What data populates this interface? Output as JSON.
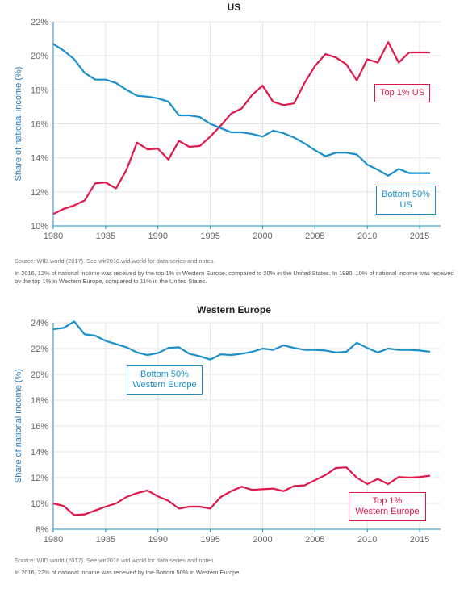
{
  "chart_data": [
    {
      "type": "line",
      "title": "US",
      "ylabel": "Share of national income (%)",
      "xlim": [
        1980,
        2017
      ],
      "ylim": [
        10,
        22
      ],
      "x_ticks": [
        "1980",
        "1985",
        "1990",
        "1995",
        "2000",
        "2005",
        "2010",
        "2015"
      ],
      "y_ticks": [
        "10%",
        "12%",
        "14%",
        "16%",
        "18%",
        "20%",
        "22%"
      ],
      "grid": true,
      "x": [
        1980,
        1981,
        1982,
        1983,
        1984,
        1985,
        1986,
        1987,
        1988,
        1989,
        1990,
        1991,
        1992,
        1993,
        1994,
        1995,
        1996,
        1997,
        1998,
        1999,
        2000,
        2001,
        2002,
        2003,
        2004,
        2005,
        2006,
        2007,
        2008,
        2009,
        2010,
        2011,
        2012,
        2013,
        2014,
        2015,
        2016
      ],
      "series": [
        {
          "name": "Top 1% US",
          "color": "#e0174a",
          "values": [
            10.7,
            11.0,
            11.2,
            11.5,
            12.5,
            12.55,
            12.2,
            13.3,
            14.9,
            14.5,
            14.55,
            13.9,
            15.0,
            14.65,
            14.7,
            15.25,
            15.9,
            16.6,
            16.9,
            17.7,
            18.25,
            17.3,
            17.1,
            17.2,
            18.4,
            19.4,
            20.1,
            19.9,
            19.5,
            18.55,
            19.8,
            19.6,
            20.8,
            19.6,
            20.2,
            20.2,
            20.2
          ]
        },
        {
          "name": "Bottom 50% US",
          "color": "#1a8fc9",
          "values": [
            20.7,
            20.3,
            19.8,
            19.0,
            18.6,
            18.6,
            18.4,
            18.0,
            17.65,
            17.6,
            17.5,
            17.3,
            16.5,
            16.5,
            16.4,
            16.0,
            15.75,
            15.5,
            15.5,
            15.4,
            15.25,
            15.6,
            15.45,
            15.2,
            14.85,
            14.45,
            14.1,
            14.3,
            14.3,
            14.2,
            13.6,
            13.3,
            12.95,
            13.35,
            13.1,
            13.1,
            13.1
          ]
        }
      ],
      "labels": {
        "top": "Top 1% US",
        "bottom": "Bottom 50% US"
      },
      "source": "Source: WID.world (2017). See wir2018.wid.world for data series and notes.",
      "note": "In 2016, 12% of national income was received by the top 1% in Western Europe, compared to 20% in the United States. In 1980, 10% of national income was received by the top 1% in Western Europe, compared to 11% in the United States."
    },
    {
      "type": "line",
      "title": "Western Europe",
      "ylabel": "Share of national income (%)",
      "xlim": [
        1980,
        2017
      ],
      "ylim": [
        8,
        24
      ],
      "x_ticks": [
        "1980",
        "1985",
        "1990",
        "1995",
        "2000",
        "2005",
        "2010",
        "2015"
      ],
      "y_ticks": [
        "8%",
        "10%",
        "12%",
        "14%",
        "16%",
        "18%",
        "20%",
        "22%",
        "24%"
      ],
      "grid": true,
      "x": [
        1980,
        1981,
        1982,
        1983,
        1984,
        1985,
        1986,
        1987,
        1988,
        1989,
        1990,
        1991,
        1992,
        1993,
        1994,
        1995,
        1996,
        1997,
        1998,
        1999,
        2000,
        2001,
        2002,
        2003,
        2004,
        2005,
        2006,
        2007,
        2008,
        2009,
        2010,
        2011,
        2012,
        2013,
        2014,
        2015,
        2016
      ],
      "series": [
        {
          "name": "Bottom 50% Western Europe",
          "color": "#1a8fc9",
          "values": [
            23.5,
            23.6,
            24.1,
            23.1,
            23.0,
            22.6,
            22.35,
            22.1,
            21.7,
            21.5,
            21.65,
            22.05,
            22.1,
            21.6,
            21.4,
            21.15,
            21.55,
            21.5,
            21.6,
            21.75,
            22.0,
            21.9,
            22.25,
            22.05,
            21.9,
            21.9,
            21.85,
            21.7,
            21.75,
            22.45,
            22.05,
            21.7,
            22.0,
            21.9,
            21.9,
            21.85,
            21.75
          ]
        },
        {
          "name": "Top 1% Western Europe",
          "color": "#e0174a",
          "values": [
            10.0,
            9.8,
            9.1,
            9.15,
            9.45,
            9.75,
            10.0,
            10.5,
            10.8,
            11.0,
            10.55,
            10.2,
            9.6,
            9.75,
            9.75,
            9.6,
            10.5,
            10.95,
            11.3,
            11.05,
            11.1,
            11.15,
            10.95,
            11.35,
            11.4,
            11.8,
            12.2,
            12.75,
            12.8,
            12.0,
            11.5,
            11.9,
            11.5,
            12.05,
            12.0,
            12.05,
            12.15
          ]
        }
      ],
      "labels": {
        "bottom_line1": "Bottom 50%",
        "bottom_line2": "Western Europe",
        "top_line1": "Top 1%",
        "top_line2": "Western Europe"
      },
      "source": "Source: WID.world (2017). See wir2018.wid.world for data series and notes.",
      "note": "In 2016, 22% of national income was received by the Bottom 50% in Western Europe."
    }
  ],
  "colors": {
    "top": "#e0174a",
    "bottom": "#1a8fc9",
    "axis": "#1a8fc9",
    "grid": "#e3e3e3"
  },
  "us_callouts": {
    "top": "Top 1% US",
    "bottom_line1": "Bottom 50%",
    "bottom_line2": "US"
  }
}
